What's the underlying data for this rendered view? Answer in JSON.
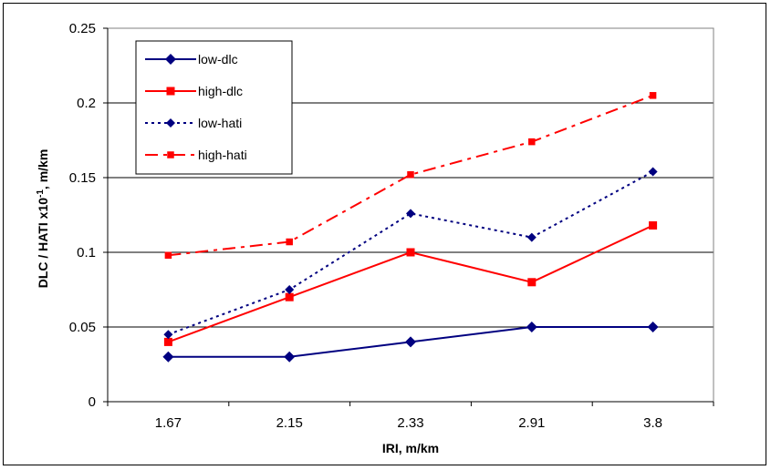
{
  "chart_data": {
    "type": "line",
    "categories": [
      "1.67",
      "2.15",
      "2.33",
      "2.91",
      "3.8"
    ],
    "xlabel": "IRI, m/km",
    "ylabel_main": "DLC / HATI x10",
    "ylabel_exp": "-1",
    "ylabel_unit": ", m/km",
    "ylim": [
      0,
      0.25
    ],
    "yticks": [
      "0",
      "0.05",
      "0.1",
      "0.15",
      "0.2",
      "0.25"
    ],
    "grid": "horizontal",
    "legend_position": "top-left",
    "series": [
      {
        "name": "low-dlc",
        "values": [
          0.03,
          0.03,
          0.04,
          0.05,
          0.05
        ],
        "color": "#000080",
        "dash": "solid",
        "marker": "diamond",
        "marker_color": "#000080"
      },
      {
        "name": "high-dlc",
        "values": [
          0.04,
          0.07,
          0.1,
          0.08,
          0.118
        ],
        "color": "#ff0000",
        "dash": "solid",
        "marker": "square",
        "marker_color": "#ff0000"
      },
      {
        "name": "low-hati",
        "values": [
          0.045,
          0.075,
          0.126,
          0.11,
          0.154
        ],
        "color": "#000080",
        "dash": "dotted",
        "marker": "diamond",
        "marker_color": "#000080"
      },
      {
        "name": "high-hati",
        "values": [
          0.098,
          0.107,
          0.152,
          0.174,
          0.205
        ],
        "color": "#ff0000",
        "dash": "dashdot",
        "marker": "square",
        "marker_color": "#ff0000"
      }
    ]
  }
}
